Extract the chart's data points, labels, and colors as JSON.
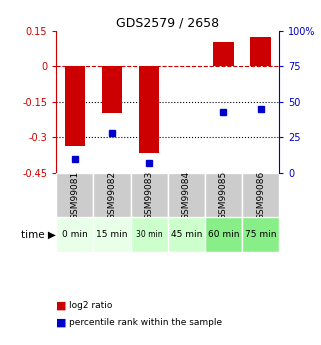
{
  "title": "GDS2579 / 2658",
  "samples": [
    "GSM99081",
    "GSM99082",
    "GSM99083",
    "GSM99084",
    "GSM99085",
    "GSM99086"
  ],
  "time_labels": [
    "0 min",
    "15 min",
    "30 min",
    "45 min",
    "60 min",
    "75 min"
  ],
  "time_colors": [
    "#e8ffe8",
    "#e8ffe8",
    "#ccffcc",
    "#ccffcc",
    "#88ee88",
    "#88ee88"
  ],
  "log2_ratio": [
    -0.335,
    -0.195,
    -0.365,
    0.0,
    0.105,
    0.125
  ],
  "percentile_rank": [
    10,
    28,
    7,
    null,
    43,
    45
  ],
  "ylim_left": [
    -0.45,
    0.15
  ],
  "ylim_right": [
    0,
    100
  ],
  "left_ticks": [
    0.15,
    0.0,
    -0.15,
    -0.3,
    -0.45
  ],
  "right_ticks": [
    100,
    75,
    50,
    25,
    0
  ],
  "hline_y": 0.0,
  "dotted_lines": [
    -0.15,
    -0.3
  ],
  "bar_color": "#cc0000",
  "dot_color": "#0000cc",
  "background_color": "#ffffff",
  "plot_bg": "#ffffff",
  "sample_bg": "#cccccc",
  "bar_width": 0.55
}
